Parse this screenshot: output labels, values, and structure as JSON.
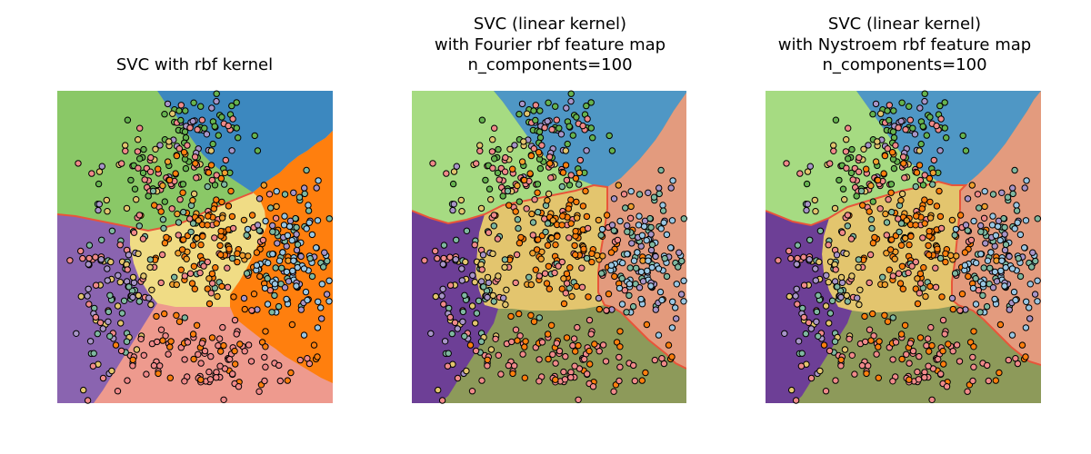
{
  "chart_data": [
    {
      "type": "scatter",
      "subtype": "decision-regions",
      "title_lines": [
        "SVC with rbf kernel"
      ],
      "axes_visible": false,
      "grid": false,
      "n_points_approx": 1000,
      "region_colors": [
        "#8ac867",
        "#3c88bf",
        "#ff7f0e",
        "#f0dc85",
        "#8a64b0",
        "#ee9a8e"
      ],
      "point_colors": [
        "#f08a8a",
        "#66b34f",
        "#ff7f0e",
        "#f0a030",
        "#9ac7e3",
        "#7fb8a0",
        "#a895c8",
        "#e3c56e"
      ]
    },
    {
      "type": "scatter",
      "subtype": "decision-regions",
      "title_lines": [
        "SVC (linear kernel)",
        "with Fourier rbf feature map",
        "n_components=100"
      ],
      "axes_visible": false,
      "grid": false,
      "n_points_approx": 1000,
      "region_colors": [
        "#a6db82",
        "#4f97c5",
        "#e39b7e",
        "#e3c56e",
        "#6d3f96",
        "#8d9a5a"
      ],
      "point_colors": [
        "#f08a8a",
        "#66b34f",
        "#ff7f0e",
        "#f0a030",
        "#9ac7e3",
        "#7fb8a0",
        "#a895c8",
        "#e3c56e"
      ]
    },
    {
      "type": "scatter",
      "subtype": "decision-regions",
      "title_lines": [
        "SVC (linear kernel)",
        "with Nystroem rbf feature map",
        "n_components=100"
      ],
      "axes_visible": false,
      "grid": false,
      "n_points_approx": 1000,
      "region_colors": [
        "#a6db82",
        "#4f97c5",
        "#e39b7e",
        "#e3c56e",
        "#6d3f96",
        "#8d9a5a"
      ],
      "point_colors": [
        "#f08a8a",
        "#66b34f",
        "#ff7f0e",
        "#f0a030",
        "#9ac7e3",
        "#7fb8a0",
        "#a895c8",
        "#e3c56e"
      ]
    }
  ]
}
